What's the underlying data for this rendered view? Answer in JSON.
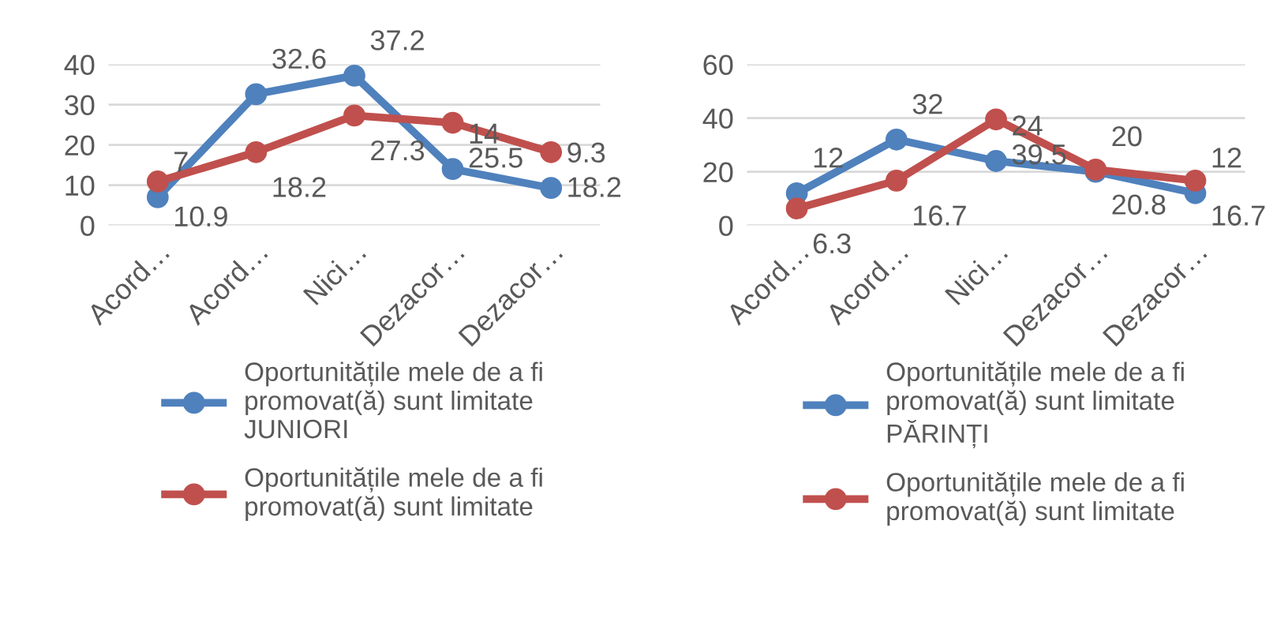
{
  "chart_data": [
    {
      "type": "line",
      "categories": [
        "Acord…",
        "Acord…",
        "Nici…",
        "Dezacor…",
        "Dezacor…"
      ],
      "ylim": [
        0,
        40
      ],
      "yticks": [
        0,
        10,
        20,
        30,
        40
      ],
      "grid": "y",
      "legend": "bottom",
      "marker": "circle",
      "data_labels": true,
      "series": [
        {
          "name": "Oportunitățile mele de a fi promovat(ă) sunt limitate JUNIORI",
          "color": "#4f81bd",
          "values": [
            7,
            32.6,
            37.2,
            14,
            9.3
          ]
        },
        {
          "name": "Oportunitățile mele de a fi promovat(ă) sunt limitate",
          "color": "#c0504d",
          "values": [
            10.9,
            18.2,
            27.3,
            25.5,
            18.2
          ]
        }
      ]
    },
    {
      "type": "line",
      "categories": [
        "Acord…",
        "Acord…",
        "Nici…",
        "Dezacor…",
        "Dezacor…"
      ],
      "ylim": [
        0,
        60
      ],
      "yticks": [
        0,
        20,
        40,
        60
      ],
      "grid": "y",
      "legend": "bottom",
      "marker": "circle",
      "data_labels": true,
      "series": [
        {
          "name": "Oportunitățile mele de a fi promovat(ă) sunt limitate PĂRINȚI",
          "color": "#4f81bd",
          "values": [
            12,
            32,
            24,
            20,
            12
          ]
        },
        {
          "name": "Oportunitățile mele de a fi promovat(ă) sunt limitate",
          "color": "#c0504d",
          "values": [
            6.3,
            16.7,
            39.5,
            20.8,
            16.7
          ]
        }
      ]
    }
  ]
}
